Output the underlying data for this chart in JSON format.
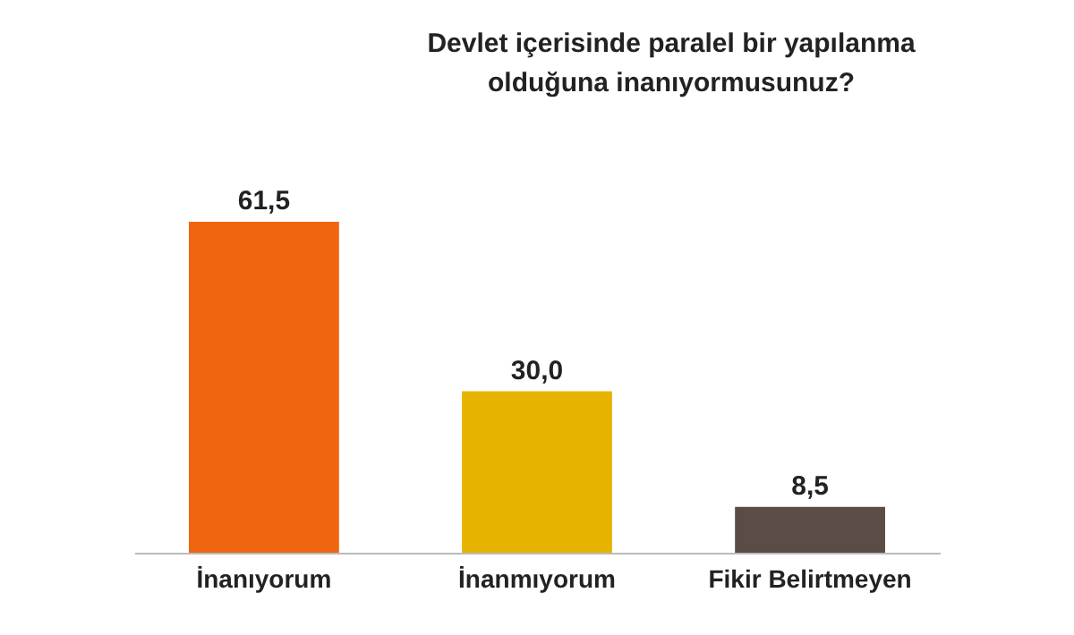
{
  "chart_data": {
    "type": "bar",
    "title": "Devlet içerisinde paralel bir yapılanma olduğuna inanıyormusunuz?",
    "categories": [
      "İnanıyorum",
      "İnanmıyorum",
      "Fikir Belirtmeyen"
    ],
    "values": [
      61.5,
      30.0,
      8.5
    ],
    "colors": [
      "#f0650f",
      "#e6b400",
      "#5b4c45"
    ],
    "value_labels": [
      "61,5",
      "30,0",
      "8,5"
    ]
  }
}
